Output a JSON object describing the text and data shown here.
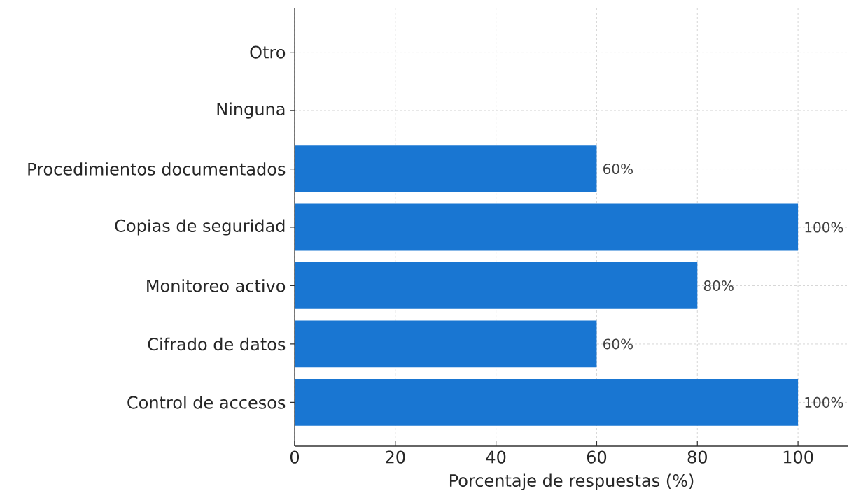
{
  "chart_data": {
    "type": "bar",
    "orientation": "horizontal",
    "categories": [
      "Otro",
      "Ninguna",
      "Procedimientos documentados",
      "Copias de seguridad",
      "Monitoreo activo",
      "Cifrado de datos",
      "Control de accesos"
    ],
    "values": [
      0,
      0,
      60,
      100,
      80,
      60,
      100
    ],
    "value_labels": [
      null,
      null,
      "60%",
      "100%",
      "80%",
      "60%",
      "100%"
    ],
    "color": "#1976d2",
    "xlim": [
      0,
      110
    ],
    "xticks": [
      0,
      20,
      40,
      60,
      80,
      100
    ],
    "xlabel": "Porcentaje de respuestas (%)",
    "grid": true
  }
}
